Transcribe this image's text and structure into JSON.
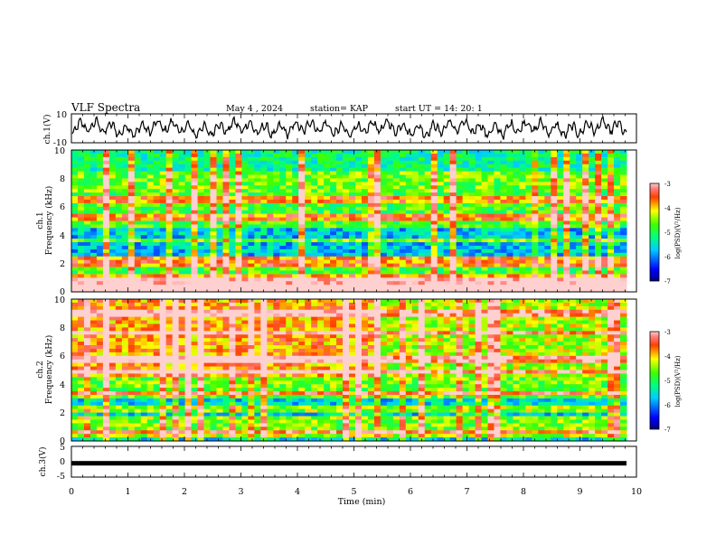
{
  "header": {
    "title": "VLF Spectra",
    "date": "May 4  , 2024",
    "station": "station= KAP",
    "start_ut": "start  UT  =   14: 20: 1"
  },
  "chart_data": [
    {
      "id": "ch1-waveform",
      "type": "line",
      "ylabel": "ch.1(V)",
      "ylim": [
        -10,
        10
      ],
      "yticks": [
        "10",
        "-10"
      ],
      "xlim": [
        0,
        10
      ]
    },
    {
      "id": "ch1-spectrogram",
      "type": "heatmap",
      "ylabel_line1": "ch.1",
      "ylabel_line2": "Frequency  (kHz)",
      "ylim": [
        0,
        10
      ],
      "yticks": [
        "0",
        "2",
        "4",
        "6",
        "8",
        "10"
      ],
      "xlim": [
        0,
        10
      ],
      "colorbar": {
        "label": "log(PSD)(V²/Hz)",
        "range": [
          -7,
          -3
        ],
        "ticks": [
          "-3",
          "-4",
          "-5",
          "-6",
          "-7"
        ]
      }
    },
    {
      "id": "ch2-spectrogram",
      "type": "heatmap",
      "ylabel_line1": "ch.2",
      "ylabel_line2": "Frequency  (kHz)",
      "ylim": [
        0,
        10
      ],
      "yticks": [
        "0",
        "2",
        "4",
        "6",
        "8",
        "10"
      ],
      "xlim": [
        0,
        10
      ],
      "colorbar": {
        "label": "log(PSD)(V²/Hz)",
        "range": [
          -7,
          -3
        ],
        "ticks": [
          "-3",
          "-4",
          "-5",
          "-6",
          "-7"
        ]
      }
    },
    {
      "id": "ch3-trace",
      "type": "line",
      "ylabel": "ch.3(V)",
      "ylim": [
        -5,
        5
      ],
      "yticks": [
        "5",
        "0",
        "-5"
      ],
      "xlim": [
        0,
        10
      ],
      "level": -0.5
    }
  ],
  "xaxis": {
    "label": "Time  (min)",
    "ticks": [
      "0",
      "1",
      "2",
      "3",
      "4",
      "5",
      "6",
      "7",
      "8",
      "9",
      "10"
    ]
  },
  "colors": {
    "trace": "#000000",
    "background": "#ffffff"
  }
}
